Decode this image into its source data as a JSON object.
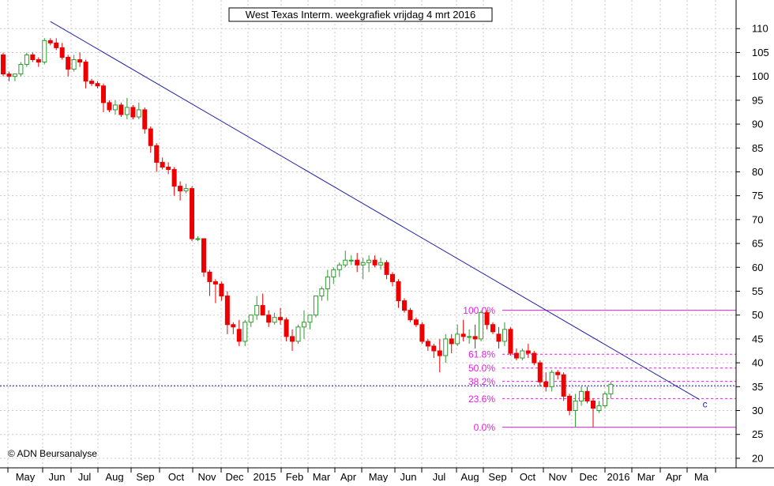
{
  "chart_data": {
    "type": "candlestick",
    "title": "West Texas Interm. weekgrafiek vrijdag 4 mrt 2016",
    "copyright": "© ADN Beursanalyse",
    "ylim": [
      18,
      116
    ],
    "y_ticks": [
      20,
      25,
      30,
      35,
      40,
      45,
      50,
      55,
      60,
      65,
      70,
      75,
      80,
      85,
      90,
      95,
      100,
      105,
      110
    ],
    "x_labels": [
      "May",
      "Jun",
      "Jul",
      "Aug",
      "Sep",
      "Oct",
      "Nov",
      "Dec",
      "2015",
      "Feb",
      "Mar",
      "Apr",
      "May",
      "Jun",
      "Jul",
      "Aug",
      "Sep",
      "Oct",
      "Nov",
      "Dec",
      "2016",
      "Mar",
      "Apr",
      "Ma"
    ],
    "grid": true,
    "colors": {
      "up": "#2e9b2e",
      "down": "#ee0000",
      "trendline": "#2222aa",
      "fib": "#e020e0",
      "support": "#1a1aa0"
    },
    "candles": [
      [
        104.5,
        105,
        100,
        100.5
      ],
      [
        100.5,
        101,
        99,
        100
      ],
      [
        100,
        100.5,
        99,
        100.5
      ],
      [
        100.5,
        103,
        100,
        102.5
      ],
      [
        102.5,
        105,
        102,
        104.5
      ],
      [
        104.5,
        105,
        103,
        103.5
      ],
      [
        103.5,
        104,
        102,
        103
      ],
      [
        103,
        108,
        102.5,
        107.5
      ],
      [
        107.5,
        108,
        106.5,
        107
      ],
      [
        107,
        108,
        105.5,
        106
      ],
      [
        106,
        107,
        103.5,
        104
      ],
      [
        104,
        104.5,
        100,
        101.5
      ],
      [
        101.5,
        104.5,
        101,
        103.5
      ],
      [
        103.5,
        105,
        102,
        103
      ],
      [
        103,
        103.5,
        97.5,
        99
      ],
      [
        99,
        99.5,
        98,
        98.5
      ],
      [
        98.5,
        99,
        97.5,
        98
      ],
      [
        98,
        98.5,
        92.5,
        94.5
      ],
      [
        94.5,
        95,
        92.5,
        93
      ],
      [
        93,
        95,
        92,
        94
      ],
      [
        94,
        94.5,
        91.5,
        92
      ],
      [
        92,
        95.5,
        91,
        93.5
      ],
      [
        93.5,
        94,
        91,
        91.5
      ],
      [
        91.5,
        94.5,
        91,
        93
      ],
      [
        93,
        93.5,
        88,
        89
      ],
      [
        89,
        89.5,
        84,
        85.5
      ],
      [
        85.5,
        86,
        80,
        82
      ],
      [
        82,
        83,
        80.5,
        81
      ],
      [
        81,
        82,
        79.5,
        80.5
      ],
      [
        80.5,
        81,
        75,
        77
      ],
      [
        77,
        78,
        74,
        76
      ],
      [
        76,
        77.5,
        75.5,
        76.5
      ],
      [
        76.5,
        77,
        65.5,
        66
      ],
      [
        66,
        66.5,
        65.5,
        66
      ],
      [
        66,
        66,
        58,
        59
      ],
      [
        59,
        59.5,
        54,
        57
      ],
      [
        57,
        57.5,
        52.5,
        56.5
      ],
      [
        56.5,
        57,
        53,
        54
      ],
      [
        54,
        55,
        46,
        48
      ],
      [
        48,
        48.5,
        46,
        47.5
      ],
      [
        47,
        49,
        43.5,
        44.5
      ],
      [
        44.5,
        49,
        43.5,
        48.5
      ],
      [
        48.5,
        50,
        47.5,
        50
      ],
      [
        50,
        54,
        49,
        52
      ],
      [
        52,
        54.5,
        50,
        50
      ],
      [
        50,
        51,
        47.5,
        48.5
      ],
      [
        48.5,
        50.5,
        48,
        49.5
      ],
      [
        49.5,
        51.5,
        48,
        49
      ],
      [
        49,
        49.5,
        44.5,
        45.5
      ],
      [
        45.5,
        47,
        42.5,
        44.5
      ],
      [
        44.5,
        48,
        44,
        47.5
      ],
      [
        47.5,
        51,
        45,
        48.5
      ],
      [
        48.5,
        50,
        47,
        50
      ],
      [
        50,
        54,
        49.5,
        54
      ],
      [
        54,
        56,
        53,
        55.5
      ],
      [
        55.5,
        59.5,
        53,
        58
      ],
      [
        58,
        60,
        56.5,
        59.5
      ],
      [
        59.5,
        61,
        58,
        60.5
      ],
      [
        60.5,
        63.5,
        60,
        61.5
      ],
      [
        61.5,
        62.5,
        60.5,
        61.5
      ],
      [
        61.5,
        63,
        59,
        60.5
      ],
      [
        60.5,
        62,
        57.5,
        61
      ],
      [
        61,
        62.5,
        59,
        61.5
      ],
      [
        61.5,
        62.5,
        60,
        60.5
      ],
      [
        60.5,
        62,
        59.5,
        61
      ],
      [
        61,
        61.5,
        57.5,
        58.5
      ],
      [
        58.5,
        59,
        56,
        57
      ],
      [
        57,
        57.5,
        51.5,
        53
      ],
      [
        53,
        53.5,
        50.5,
        51
      ],
      [
        51,
        51.5,
        48.5,
        49
      ],
      [
        49,
        49.5,
        47.5,
        48
      ],
      [
        48,
        48.5,
        44,
        44.5
      ],
      [
        44.5,
        45,
        42.5,
        43.5
      ],
      [
        43.5,
        44,
        41,
        42.5
      ],
      [
        42.5,
        45,
        38,
        41.5
      ],
      [
        41.5,
        46,
        40,
        45
      ],
      [
        45,
        46,
        42,
        44
      ],
      [
        44,
        48,
        43.5,
        46
      ],
      [
        46,
        49,
        44.5,
        45.5
      ],
      [
        45.5,
        47,
        44,
        45.5
      ],
      [
        45.5,
        48,
        43,
        45
      ],
      [
        45,
        51,
        44.5,
        50.5
      ],
      [
        50.5,
        51,
        47,
        48
      ],
      [
        48,
        48.5,
        46,
        46.5
      ],
      [
        46,
        47.5,
        43,
        44.5
      ],
      [
        44.5,
        48.5,
        43.5,
        47
      ],
      [
        47,
        47.5,
        41.5,
        42
      ],
      [
        42,
        43,
        40.5,
        41
      ],
      [
        41,
        43,
        40.5,
        42.5
      ],
      [
        42.5,
        44,
        41,
        42
      ],
      [
        42,
        42.5,
        39.5,
        40
      ],
      [
        40,
        40.5,
        35,
        36
      ],
      [
        36,
        38,
        34,
        35
      ],
      [
        35,
        38.5,
        34,
        38
      ],
      [
        38,
        38.5,
        36.5,
        37.5
      ],
      [
        37.5,
        38,
        32,
        33
      ],
      [
        33,
        33.5,
        29,
        30
      ],
      [
        30,
        33.5,
        26.5,
        32
      ],
      [
        32,
        35,
        31,
        34
      ],
      [
        34,
        35,
        31.5,
        32
      ],
      [
        32,
        32.5,
        26.5,
        30.5
      ],
      [
        30,
        32,
        29.5,
        31
      ],
      [
        31,
        34,
        30.5,
        33.5
      ],
      [
        33.5,
        36,
        32.5,
        35.5
      ]
    ],
    "trendline": {
      "from": [
        8,
        111.5
      ],
      "to": [
        114,
        32.3
      ],
      "label": "c"
    },
    "support_level": 35.2,
    "fibonacci": [
      {
        "label": "100.0%",
        "value": 51
      },
      {
        "label": "61.8%",
        "value": 41.8
      },
      {
        "label": "50.0%",
        "value": 38.9
      },
      {
        "label": "38.2%",
        "value": 36.1
      },
      {
        "label": "23.6%",
        "value": 32.5
      },
      {
        "label": "0.0%",
        "value": 26.5
      }
    ]
  }
}
